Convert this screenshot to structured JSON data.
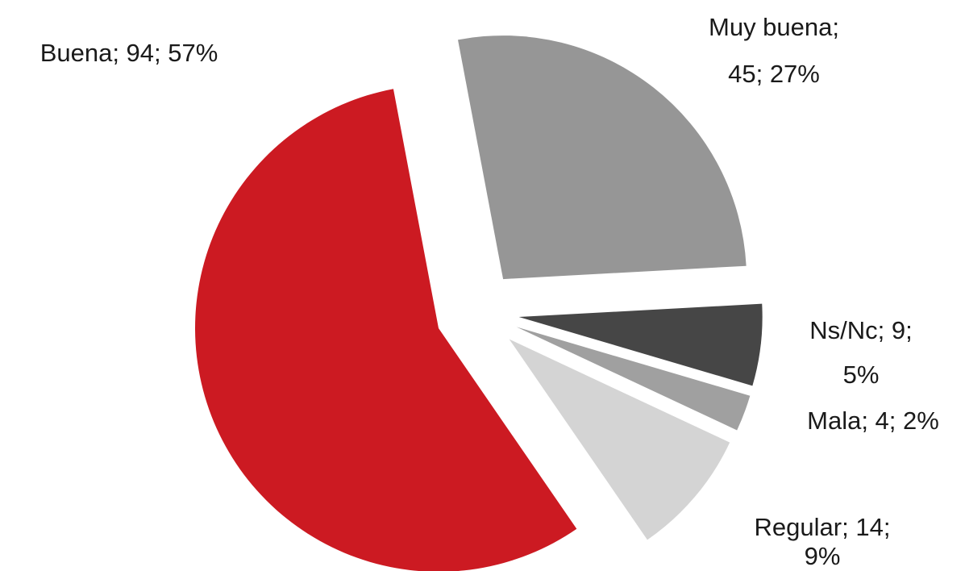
{
  "chart_data": {
    "type": "pie",
    "values": [
      45,
      9,
      4,
      14,
      94
    ],
    "value_labels": [
      "Muy buena; 45; 27%",
      "Ns/Nc; 9; 5%",
      "Mala; 4; 2%",
      "Regular; 14; 9%",
      "Buena; 94; 57%"
    ],
    "colors": [
      "#969696",
      "#464646",
      "#a0a0a0",
      "#d4d4d4",
      "#cc1a22"
    ]
  }
}
